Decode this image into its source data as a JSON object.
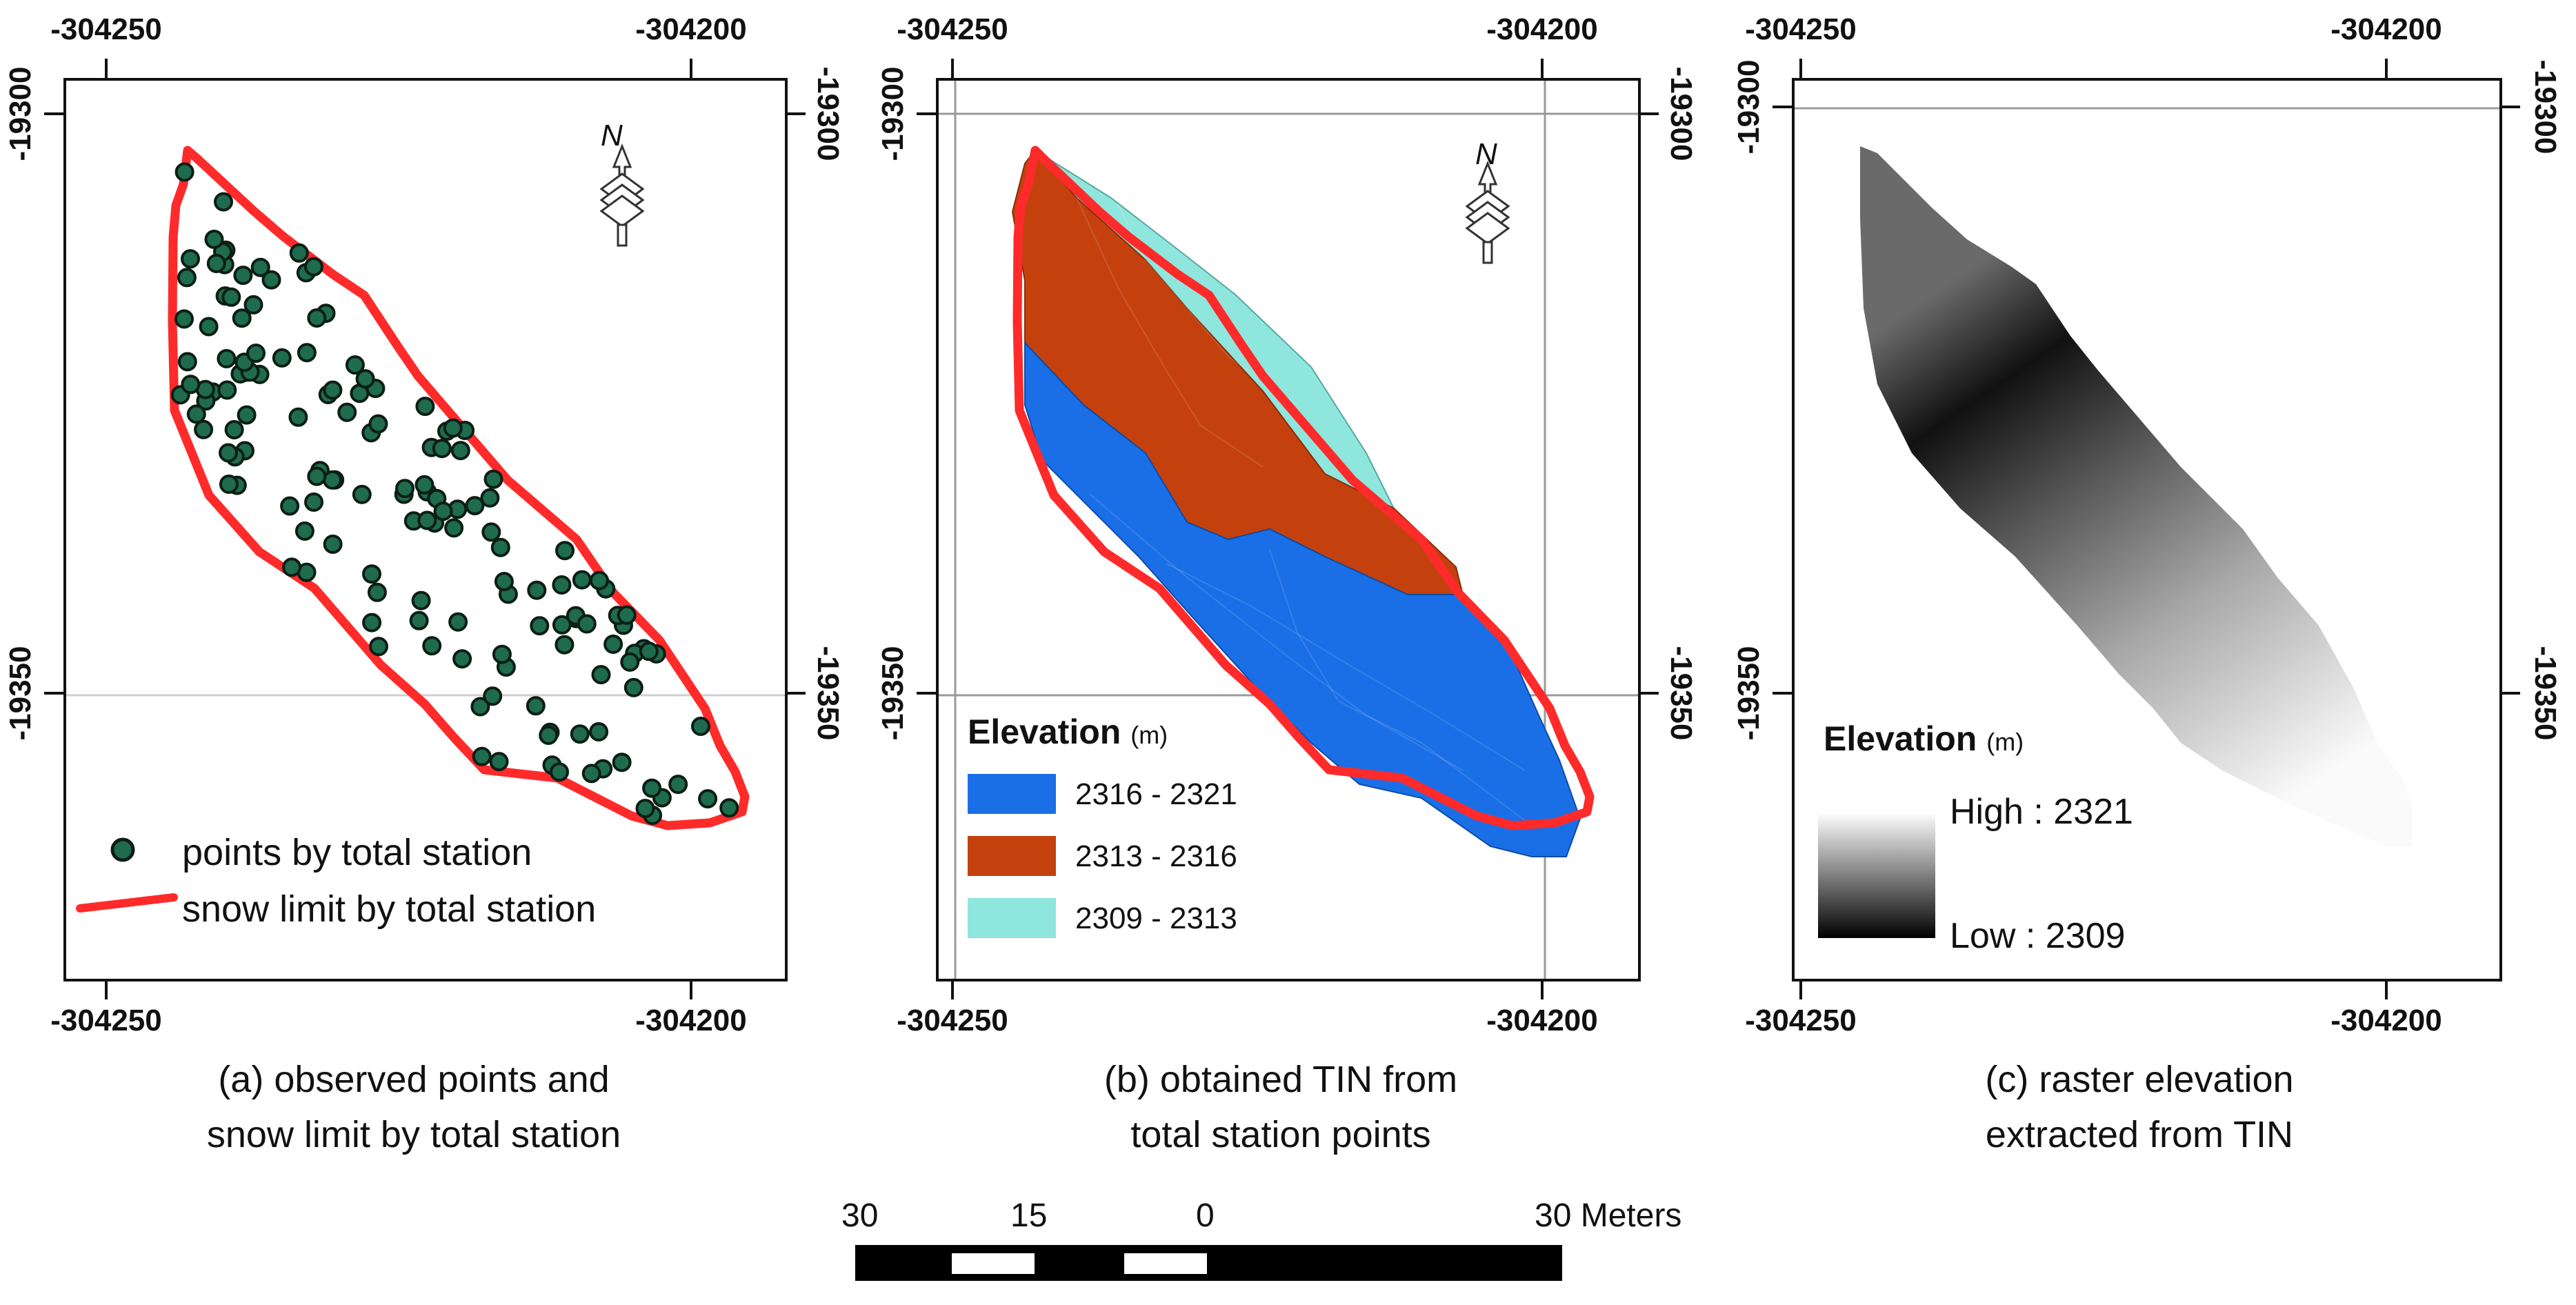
{
  "map_panels": [
    {
      "id": "a",
      "caption_line1": "(a) observed points and",
      "caption_line2": "snow limit by total station",
      "x_ticks": [
        "-304250",
        "-304200"
      ],
      "y_ticks": [
        "-19300",
        "-19350"
      ],
      "legend": {
        "points_label": "points by total station",
        "limit_label": "snow limit by total station",
        "point_color": "#1f6b4e",
        "limit_color": "#ff2a2a"
      },
      "north_label": "N"
    },
    {
      "id": "b",
      "caption_line1": "(b) obtained TIN from",
      "caption_line2": "total station points",
      "x_ticks": [
        "-304250",
        "-304200"
      ],
      "y_ticks": [
        "-19300",
        "-19350"
      ],
      "legend": {
        "title": "Elevation",
        "unit": "(m)",
        "classes": [
          {
            "label": "2316 - 2321",
            "color": "#1a6fe6"
          },
          {
            "label": "2313 - 2316",
            "color": "#c4410e"
          },
          {
            "label": "2309 - 2313",
            "color": "#8fe6dc"
          }
        ]
      },
      "north_label": "N"
    },
    {
      "id": "c",
      "caption_line1": "(c) raster elevation",
      "caption_line2": "extracted from TIN",
      "x_ticks": [
        "-304250",
        "-304200"
      ],
      "y_ticks": [
        "-19300",
        "-19350"
      ],
      "legend": {
        "title": "Elevation",
        "unit": "(m)",
        "high_label": "High : 2321",
        "low_label": "Low : 2309"
      }
    }
  ],
  "scale_bar": {
    "labels": [
      "30",
      "15",
      "0",
      "30 Meters"
    ]
  }
}
